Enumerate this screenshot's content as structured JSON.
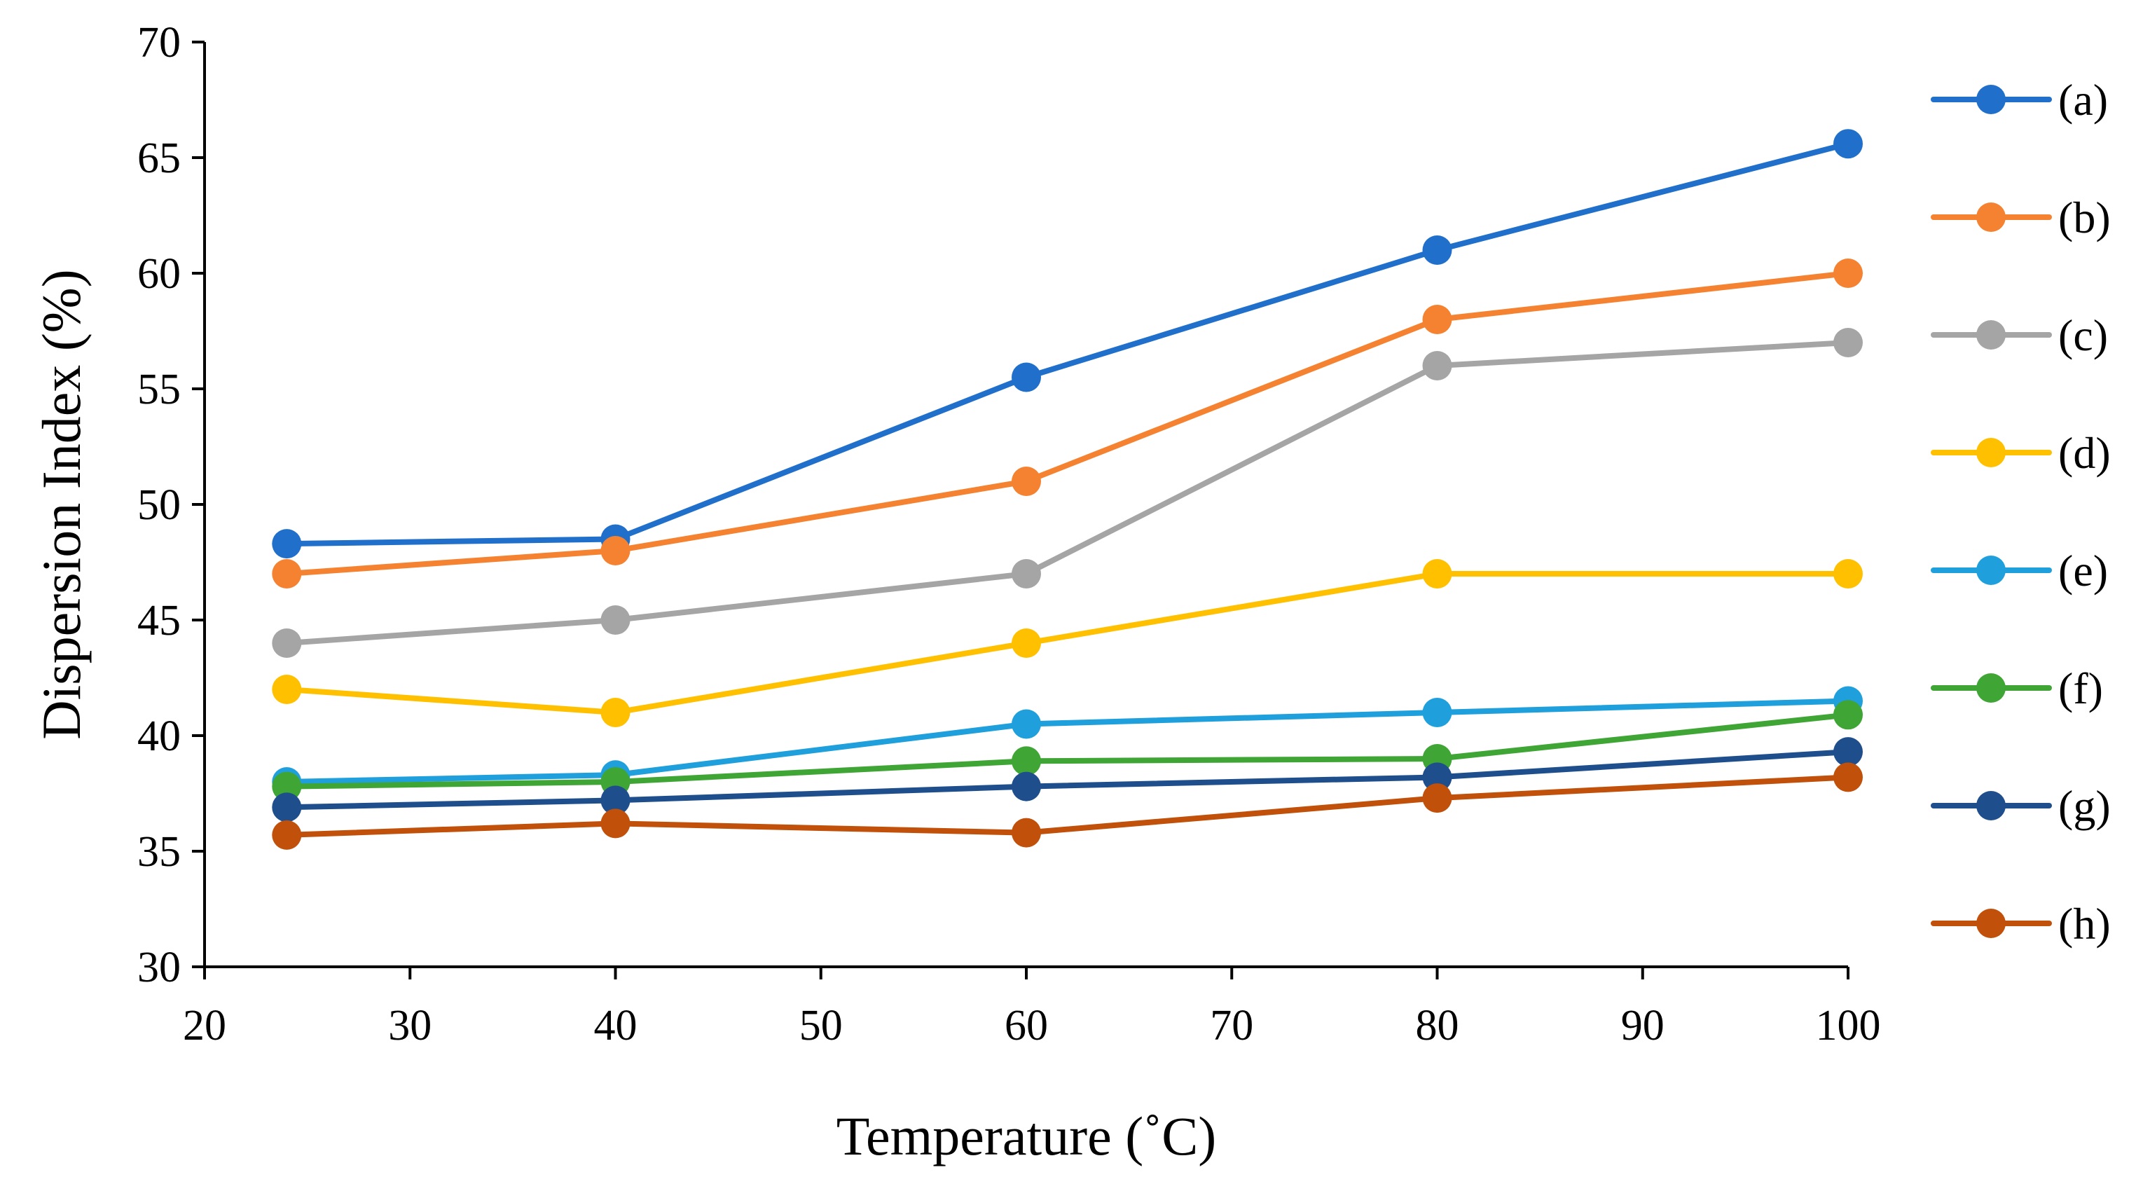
{
  "chart_data": {
    "type": "line",
    "title": "",
    "xlabel": "Temperature (˚C)",
    "ylabel": "Dispersion Index (%)",
    "xlim": [
      20,
      100
    ],
    "ylim": [
      30,
      70
    ],
    "xticks": [
      20,
      30,
      40,
      50,
      60,
      70,
      80,
      90,
      100
    ],
    "yticks": [
      30,
      35,
      40,
      45,
      50,
      55,
      60,
      65,
      70
    ],
    "grid": false,
    "legend_position": "right",
    "x": [
      24,
      40,
      60,
      80,
      100
    ],
    "series": [
      {
        "name": "(a)",
        "color": "#1F6FCB",
        "values": [
          48.3,
          48.5,
          55.5,
          61.0,
          65.6
        ]
      },
      {
        "name": "(b)",
        "color": "#F58231",
        "values": [
          47.0,
          48.0,
          51.0,
          58.0,
          60.0
        ]
      },
      {
        "name": "(c)",
        "color": "#A5A5A5",
        "values": [
          44.0,
          45.0,
          47.0,
          56.0,
          57.0
        ]
      },
      {
        "name": "(d)",
        "color": "#FFC000",
        "values": [
          42.0,
          41.0,
          44.0,
          47.0,
          47.0
        ]
      },
      {
        "name": "(e)",
        "color": "#1FA0DC",
        "values": [
          38.0,
          38.3,
          40.5,
          41.0,
          41.5
        ]
      },
      {
        "name": "(f)",
        "color": "#3FA535",
        "values": [
          37.8,
          38.0,
          38.9,
          39.0,
          40.9
        ]
      },
      {
        "name": "(g)",
        "color": "#1F4E8C",
        "values": [
          36.9,
          37.2,
          37.8,
          38.2,
          39.3
        ]
      },
      {
        "name": "(h)",
        "color": "#C0500A",
        "values": [
          35.7,
          36.2,
          35.8,
          37.3,
          38.2
        ]
      }
    ]
  }
}
